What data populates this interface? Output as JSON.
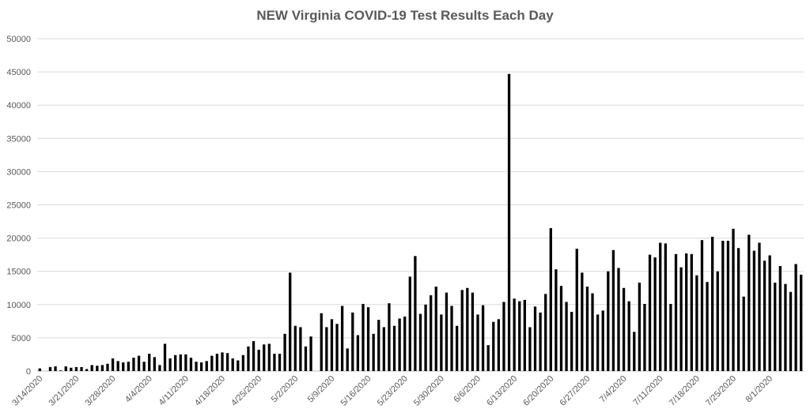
{
  "chart_data": {
    "type": "bar",
    "title": "NEW Virginia COVID-19 Test Results Each Day",
    "xlabel": "",
    "ylabel": "",
    "ylim": [
      0,
      50000
    ],
    "yticks": [
      0,
      5000,
      10000,
      15000,
      20000,
      25000,
      30000,
      35000,
      40000,
      45000,
      50000
    ],
    "xticks": [
      "3/14/2020",
      "3/21/2020",
      "3/28/2020",
      "4/4/2020",
      "4/11/2020",
      "4/18/2020",
      "4/25/2020",
      "5/2/2020",
      "5/9/2020",
      "5/16/2020",
      "5/23/2020",
      "5/30/2020",
      "6/6/2020",
      "6/13/2020",
      "6/20/2020",
      "6/27/2020",
      "7/4/2020",
      "7/11/2020",
      "7/18/2020",
      "7/25/2020",
      "8/1/2020"
    ],
    "start_label": "3/14/2020",
    "grid": true,
    "legend": "none",
    "bar_color": "#000000",
    "grid_color": "#d9d9d9",
    "series": [
      {
        "values": [
          400,
          0,
          600,
          700,
          100,
          700,
          500,
          600,
          600,
          300,
          900,
          800,
          900,
          1100,
          1900,
          1500,
          1300,
          1400,
          2000,
          2300,
          1400,
          2600,
          2100,
          900,
          4100,
          1900,
          2400,
          2500,
          2500,
          2000,
          1400,
          1300,
          1500,
          2300,
          2600,
          2800,
          2700,
          1900,
          1600,
          2400,
          3700,
          4500,
          3200,
          4000,
          4100,
          2600,
          2600,
          5600,
          14800,
          6800,
          6600,
          3700,
          5200,
          0,
          8700,
          6600,
          7800,
          7100,
          9800,
          3400,
          8800,
          5400,
          10100,
          9600,
          5600,
          7700,
          6600,
          10200,
          6800,
          7900,
          8200,
          14200,
          17300,
          8600,
          10000,
          11400,
          12700,
          8500,
          11800,
          9800,
          6800,
          12200,
          12500,
          11800,
          8500,
          9900,
          3900,
          7400,
          7800,
          10400,
          44700,
          10900,
          10500,
          10700,
          6600,
          9700,
          8800,
          11600,
          21500,
          15300,
          12800,
          10400,
          8900,
          18400,
          14800,
          12700,
          11700,
          8500,
          9100,
          15000,
          18200,
          15500,
          12500,
          10500,
          5900,
          13300,
          10100,
          17500,
          17100,
          19300,
          19200,
          10100,
          17600,
          15600,
          17700,
          17600,
          14400,
          19700,
          13400,
          20200,
          15000,
          19600,
          19600,
          21400,
          18500,
          11200,
          20500,
          18100,
          19300,
          16600,
          17400,
          13300,
          15800,
          13100,
          11900,
          16100,
          14500
        ]
      }
    ]
  }
}
